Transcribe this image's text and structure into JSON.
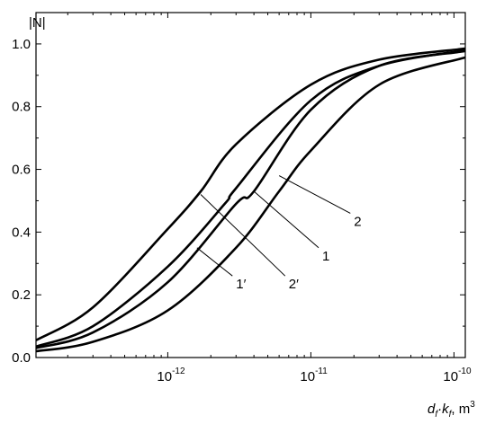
{
  "chart_data": {
    "type": "line",
    "ylabel": "|N|",
    "xlabel": {
      "d": "d",
      "f1": "f",
      "dot": "·",
      "k": "k",
      "f2": "f",
      "unit": ", m",
      "exp": "3"
    },
    "x_scale": "log",
    "xlim": [
      1.2e-13,
      1.2e-10
    ],
    "ylim": [
      0,
      1.1
    ],
    "y_ticks": [
      "0.0",
      "0.2",
      "0.4",
      "0.6",
      "0.8",
      "1.0"
    ],
    "x_ticks": [
      {
        "value": 1e-12,
        "base": "10",
        "exp": "-12"
      },
      {
        "value": 1e-11,
        "base": "10",
        "exp": "-11"
      },
      {
        "value": 1e-10,
        "base": "10",
        "exp": "-10"
      }
    ],
    "series": [
      {
        "name": "1′",
        "x": [
          1.2e-13,
          3e-13,
          1e-12,
          1.7e-12,
          3e-12,
          1e-11,
          3e-11,
          1.2e-10
        ],
        "y": [
          0.055,
          0.16,
          0.41,
          0.53,
          0.68,
          0.87,
          0.95,
          0.985
        ]
      },
      {
        "name": "2′",
        "x": [
          1.2e-13,
          3e-13,
          1e-12,
          2.5e-12,
          3e-12,
          1e-11,
          3e-11,
          1.2e-10
        ],
        "y": [
          0.035,
          0.1,
          0.29,
          0.49,
          0.54,
          0.82,
          0.93,
          0.98
        ]
      },
      {
        "name": "1",
        "x": [
          1.2e-13,
          3e-13,
          1e-12,
          3e-12,
          4e-12,
          1e-11,
          3e-11,
          1.2e-10
        ],
        "y": [
          0.03,
          0.08,
          0.24,
          0.49,
          0.53,
          0.79,
          0.93,
          0.977
        ]
      },
      {
        "name": "2",
        "x": [
          1.2e-13,
          3e-13,
          1e-12,
          3e-12,
          6e-12,
          1e-11,
          3e-11,
          1.2e-10
        ],
        "y": [
          0.02,
          0.05,
          0.15,
          0.35,
          0.53,
          0.66,
          0.87,
          0.957
        ]
      }
    ],
    "annotations": [
      {
        "text": "1′",
        "tx": 3e-12,
        "ty": 0.22,
        "x": 1.6e-12,
        "y": 0.35
      },
      {
        "text": "2′",
        "tx": 7e-12,
        "ty": 0.22,
        "x": 1.7e-12,
        "y": 0.52
      },
      {
        "text": "1",
        "tx": 1.2e-11,
        "ty": 0.31,
        "x": 4e-12,
        "y": 0.53
      },
      {
        "text": "2",
        "tx": 2e-11,
        "ty": 0.42,
        "x": 6e-12,
        "y": 0.58
      }
    ]
  }
}
